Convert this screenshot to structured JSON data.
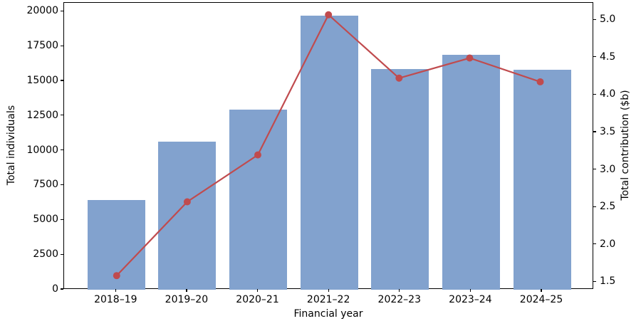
{
  "chart_data": {
    "type": "bar",
    "subtype": "dual-axis bar + line combo",
    "title": "",
    "categories": [
      "2018–19",
      "2019–20",
      "2020–21",
      "2021–22",
      "2022–23",
      "2023–24",
      "2024–25"
    ],
    "series": [
      {
        "name": "Total individuals",
        "type": "bar",
        "axis": "left",
        "color": "#82a2ce",
        "values": [
          6450,
          10650,
          12950,
          19700,
          15850,
          16900,
          15800
        ]
      },
      {
        "name": "Total contribution ($b)",
        "type": "line",
        "axis": "right",
        "color": "#c04b4e",
        "marker": "circle",
        "values": [
          1.57,
          2.56,
          3.19,
          5.07,
          4.22,
          4.49,
          4.17
        ]
      }
    ],
    "xlabel": "Financial year",
    "ylabel_left": "Total individuals",
    "ylabel_right": "Total contribution ($b)",
    "left_axis": {
      "tick_labels": [
        "0",
        "2500",
        "5000",
        "7500",
        "10000",
        "12500",
        "15000",
        "17500",
        "20000"
      ],
      "range": [
        0,
        20630
      ]
    },
    "right_axis": {
      "tick_labels": [
        "1.5",
        "2.0",
        "2.5",
        "3.0",
        "3.5",
        "4.0",
        "4.5",
        "5.0"
      ],
      "range": [
        1.4,
        5.23
      ]
    },
    "grid": false,
    "legend_position": "none",
    "background_color": "#ffffff",
    "spine_color": "#000000"
  }
}
